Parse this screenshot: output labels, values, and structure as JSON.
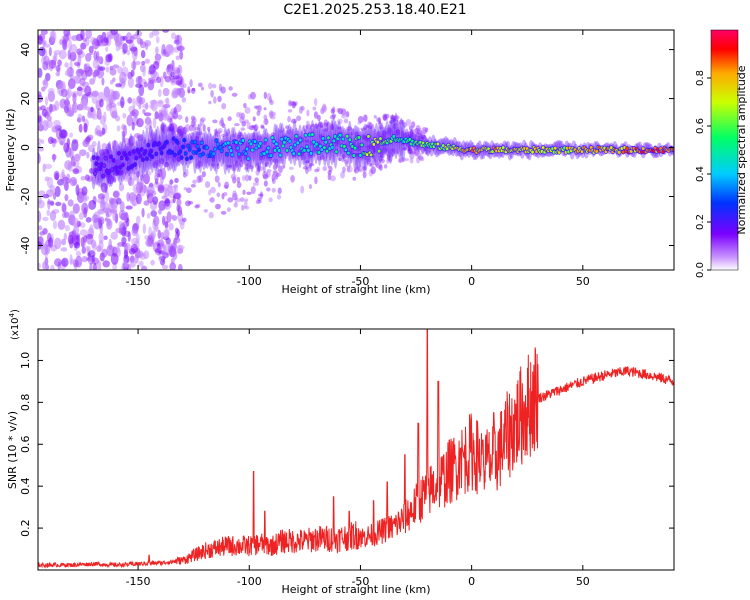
{
  "title": "C2E1.2025.253.18.40.E21",
  "chart_data": [
    {
      "type": "heatmap",
      "title": "C2E1.2025.253.18.40.E21",
      "xlabel": "Height of straight line (km)",
      "ylabel": "Frequency (Hz)",
      "xlim": [
        -195,
        91
      ],
      "ylim": [
        -50,
        48
      ],
      "xticks": [
        -150,
        -100,
        -50,
        0,
        50
      ],
      "xtick_labels": [
        "-150",
        "-100",
        "-50",
        "0",
        "50"
      ],
      "yticks": [
        -40,
        -20,
        0,
        20,
        40
      ],
      "ytick_labels": [
        "-40",
        "-20",
        "0",
        "20",
        "40"
      ],
      "colorbar": {
        "label": "Normalized spectral amplitude",
        "range": [
          0,
          1
        ],
        "ticks": [
          0.0,
          0.2,
          0.4,
          0.6,
          0.8
        ],
        "tick_labels": [
          "0.0",
          "0.2",
          "0.4",
          "0.6",
          "0.8"
        ],
        "colormap": "rainbow"
      },
      "ridge": {
        "x": [
          -165,
          -140,
          -120,
          -100,
          -80,
          -60,
          -50,
          -45,
          -40,
          -35,
          -30,
          -20,
          -10,
          0,
          20,
          40,
          60,
          80,
          91
        ],
        "frequency": [
          -8,
          0,
          -1,
          -1,
          1,
          2,
          0,
          1,
          2,
          4,
          3,
          1,
          0,
          -1,
          -1,
          -1,
          -1,
          -1,
          -1
        ],
        "amplitude": [
          0.15,
          0.2,
          0.35,
          0.45,
          0.5,
          0.55,
          0.6,
          0.75,
          0.65,
          0.6,
          0.55,
          0.65,
          0.7,
          0.85,
          0.8,
          0.75,
          0.85,
          0.95,
          0.9
        ]
      }
    },
    {
      "type": "line",
      "title": "",
      "xlabel": "Height of straight line (km)",
      "ylabel": "SNR (10 * v/v)",
      "ylabel_multiplier": "(x10^4)",
      "ylabel_multiplier_base": "(x10",
      "ylabel_multiplier_exp": "4",
      "ylabel_multiplier_close": ")",
      "xlim": [
        -195,
        91
      ],
      "ylim": [
        0,
        1.15
      ],
      "xticks": [
        -150,
        -100,
        -50,
        0,
        50
      ],
      "xtick_labels": [
        "-150",
        "-100",
        "-50",
        "0",
        "50"
      ],
      "yticks": [
        0.2,
        0.4,
        0.6,
        0.8,
        1.0
      ],
      "ytick_labels": [
        "0.2",
        "0.4",
        "0.6",
        "0.8",
        "1.0"
      ],
      "series": [
        {
          "name": "SNR",
          "color": "#ee2222",
          "x": [
            -195,
            -180,
            -170,
            -160,
            -150,
            -140,
            -130,
            -125,
            -120,
            -115,
            -110,
            -105,
            -100,
            -95,
            -90,
            -85,
            -80,
            -75,
            -70,
            -65,
            -60,
            -55,
            -50,
            -45,
            -40,
            -35,
            -30,
            -25,
            -20,
            -15,
            -10,
            -5,
            0,
            5,
            10,
            15,
            20,
            25,
            30,
            40,
            50,
            60,
            70,
            80,
            91
          ],
          "values": [
            0.02,
            0.02,
            0.025,
            0.02,
            0.025,
            0.03,
            0.04,
            0.06,
            0.08,
            0.09,
            0.1,
            0.1,
            0.1,
            0.11,
            0.1,
            0.12,
            0.12,
            0.12,
            0.13,
            0.13,
            0.13,
            0.14,
            0.15,
            0.16,
            0.18,
            0.2,
            0.24,
            0.3,
            0.36,
            0.4,
            0.45,
            0.5,
            0.55,
            0.5,
            0.5,
            0.6,
            0.68,
            0.75,
            0.82,
            0.86,
            0.9,
            0.93,
            0.95,
            0.93,
            0.9
          ]
        }
      ],
      "peaks": {
        "x": [
          -145,
          -98,
          -93,
          -62,
          -55,
          -44,
          -38,
          -30,
          -24,
          -20,
          -15,
          -10,
          -5,
          5,
          10
        ],
        "values": [
          0.07,
          0.47,
          0.28,
          0.35,
          0.28,
          0.33,
          0.42,
          0.55,
          0.7,
          1.15,
          0.9,
          0.62,
          0.58,
          0.62,
          0.75
        ]
      }
    }
  ]
}
